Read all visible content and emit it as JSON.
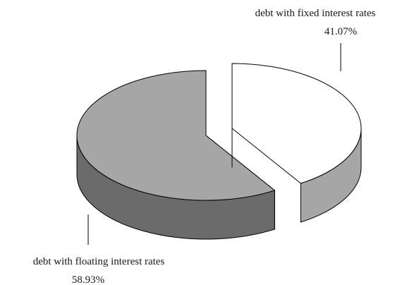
{
  "chart_data": {
    "type": "pie",
    "style": "3d-exploded",
    "slices": [
      {
        "label": "debt with fixed interest rates",
        "value": 41.07,
        "value_label": "41.07%",
        "color": "#ffffff",
        "side_color": "#a6a6a6",
        "exploded": true
      },
      {
        "label": "debt with floating interest rates",
        "value": 58.93,
        "value_label": "58.93%",
        "color": "#a6a6a6",
        "side_color": "#6b6b6b",
        "exploded": false
      }
    ]
  }
}
